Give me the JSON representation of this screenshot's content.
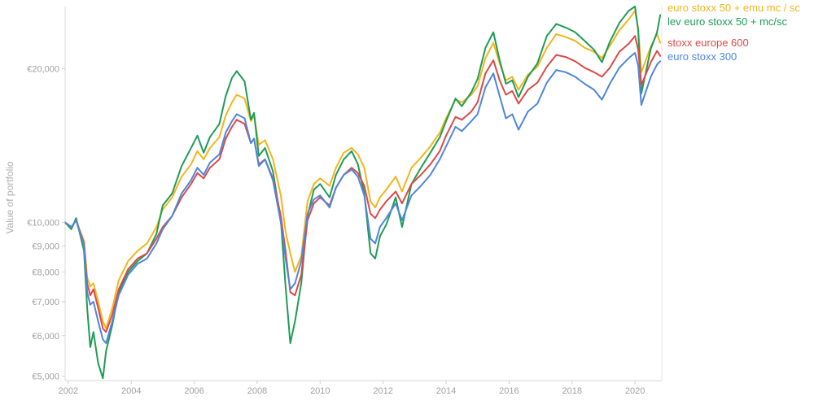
{
  "chart_data": {
    "type": "line",
    "title": "",
    "xlabel": "",
    "ylabel": "Value of portfolio",
    "y_scale": "log",
    "ylim": [
      4900,
      26500
    ],
    "xlim": [
      2001.9,
      2020.85
    ],
    "grid": false,
    "legend_placement": "right, at line ends",
    "y_ticks": [
      {
        "value": 5000,
        "label": "€5,000"
      },
      {
        "value": 6000,
        "label": "€6,000"
      },
      {
        "value": 7000,
        "label": "€7,000"
      },
      {
        "value": 8000,
        "label": "€8,000"
      },
      {
        "value": 9000,
        "label": "€9,000"
      },
      {
        "value": 10000,
        "label": "€10,000"
      },
      {
        "value": 20000,
        "label": "€20,000"
      }
    ],
    "x_ticks": [
      {
        "value": 2002,
        "label": "2002"
      },
      {
        "value": 2004,
        "label": "2004"
      },
      {
        "value": 2006,
        "label": "2006"
      },
      {
        "value": 2008,
        "label": "2008"
      },
      {
        "value": 2010,
        "label": "2010"
      },
      {
        "value": 2012,
        "label": "2012"
      },
      {
        "value": 2014,
        "label": "2014"
      },
      {
        "value": 2016,
        "label": "2016"
      },
      {
        "value": 2018,
        "label": "2018"
      },
      {
        "value": 2020,
        "label": "2020"
      }
    ],
    "series": [
      {
        "name": "euro stoxx 50 + emu mc / sc",
        "color": "#f2b51c",
        "x": [
          2001.9,
          2002.1,
          2002.25,
          2002.5,
          2002.6,
          2002.7,
          2002.8,
          2002.95,
          2003.1,
          2003.2,
          2003.4,
          2003.6,
          2003.9,
          2004.2,
          2004.5,
          2004.8,
          2005.0,
          2005.3,
          2005.6,
          2005.9,
          2006.1,
          2006.3,
          2006.5,
          2006.8,
          2007.0,
          2007.2,
          2007.35,
          2007.6,
          2007.8,
          2007.9,
          2008.05,
          2008.25,
          2008.5,
          2008.75,
          2008.9,
          2009.05,
          2009.2,
          2009.4,
          2009.6,
          2009.8,
          2010.0,
          2010.3,
          2010.5,
          2010.75,
          2011.0,
          2011.2,
          2011.4,
          2011.6,
          2011.75,
          2011.9,
          2012.1,
          2012.4,
          2012.6,
          2012.9,
          2013.2,
          2013.5,
          2013.8,
          2014.0,
          2014.3,
          2014.5,
          2014.8,
          2015.0,
          2015.25,
          2015.5,
          2015.7,
          2015.9,
          2016.1,
          2016.3,
          2016.6,
          2016.9,
          2017.2,
          2017.5,
          2017.8,
          2018.1,
          2018.4,
          2018.7,
          2018.95,
          2019.2,
          2019.5,
          2019.8,
          2020.0,
          2020.1,
          2020.2,
          2020.5,
          2020.7,
          2020.8
        ],
        "values": [
          10000,
          9800,
          10100,
          9200,
          7800,
          7500,
          7600,
          7000,
          6400,
          6200,
          6800,
          7700,
          8400,
          8800,
          9100,
          9800,
          10600,
          11200,
          12300,
          13000,
          13800,
          13300,
          14000,
          14700,
          16200,
          17200,
          17800,
          17500,
          15800,
          16200,
          14200,
          14500,
          13300,
          11300,
          9600,
          8700,
          8000,
          8600,
          11000,
          11900,
          12200,
          11800,
          12800,
          13700,
          14000,
          13600,
          12800,
          11000,
          10700,
          11200,
          11600,
          12300,
          11500,
          12800,
          13400,
          14100,
          15000,
          16000,
          17400,
          17200,
          17800,
          18500,
          21000,
          22500,
          20500,
          19000,
          19300,
          18200,
          19500,
          20200,
          22000,
          23400,
          23100,
          22700,
          22000,
          21600,
          21000,
          22200,
          23800,
          25000,
          26000,
          24000,
          19700,
          22100,
          23400,
          22500
        ]
      },
      {
        "name": "lev euro stoxx 50 + mc/sc",
        "color": "#1f9c55",
        "x": [
          2001.9,
          2002.1,
          2002.25,
          2002.5,
          2002.6,
          2002.7,
          2002.8,
          2002.95,
          2003.1,
          2003.2,
          2003.4,
          2003.6,
          2003.9,
          2004.2,
          2004.5,
          2004.8,
          2005.0,
          2005.3,
          2005.6,
          2005.9,
          2006.1,
          2006.3,
          2006.5,
          2006.8,
          2007.0,
          2007.2,
          2007.35,
          2007.6,
          2007.8,
          2007.9,
          2008.05,
          2008.25,
          2008.5,
          2008.75,
          2008.9,
          2009.05,
          2009.2,
          2009.4,
          2009.6,
          2009.8,
          2010.0,
          2010.3,
          2010.5,
          2010.75,
          2011.0,
          2011.2,
          2011.4,
          2011.6,
          2011.75,
          2011.9,
          2012.1,
          2012.4,
          2012.6,
          2012.9,
          2013.2,
          2013.5,
          2013.8,
          2014.0,
          2014.3,
          2014.5,
          2014.8,
          2015.0,
          2015.25,
          2015.5,
          2015.7,
          2015.9,
          2016.1,
          2016.3,
          2016.6,
          2016.9,
          2017.2,
          2017.5,
          2017.8,
          2018.1,
          2018.4,
          2018.7,
          2018.95,
          2019.2,
          2019.5,
          2019.8,
          2020.0,
          2020.1,
          2020.2,
          2020.5,
          2020.7,
          2020.8
        ],
        "values": [
          10000,
          9700,
          10200,
          8800,
          6800,
          5700,
          6100,
          5300,
          4950,
          5600,
          6300,
          7300,
          8000,
          8400,
          8700,
          9500,
          10800,
          11400,
          12900,
          14000,
          14800,
          13700,
          14700,
          15600,
          17700,
          19200,
          19800,
          18900,
          15900,
          16400,
          13500,
          14000,
          12600,
          10100,
          7500,
          5800,
          6400,
          7600,
          10300,
          11600,
          11900,
          11200,
          12400,
          13300,
          13800,
          13000,
          11400,
          8700,
          8500,
          9400,
          9900,
          11200,
          9800,
          11900,
          12800,
          13700,
          14700,
          15800,
          17500,
          16900,
          18000,
          19100,
          22000,
          23600,
          20800,
          18700,
          19000,
          17600,
          19300,
          20500,
          23200,
          24500,
          24100,
          23600,
          22700,
          21800,
          20600,
          22600,
          24600,
          26000,
          26500,
          23800,
          17900,
          21900,
          23600,
          25500
        ]
      },
      {
        "name": "stoxx europe 600",
        "color": "#dc4a48",
        "x": [
          2001.9,
          2002.1,
          2002.25,
          2002.5,
          2002.6,
          2002.7,
          2002.8,
          2002.95,
          2003.1,
          2003.2,
          2003.4,
          2003.6,
          2003.9,
          2004.2,
          2004.5,
          2004.8,
          2005.0,
          2005.3,
          2005.6,
          2005.9,
          2006.1,
          2006.3,
          2006.5,
          2006.8,
          2007.0,
          2007.2,
          2007.35,
          2007.6,
          2007.8,
          2007.9,
          2008.05,
          2008.25,
          2008.5,
          2008.75,
          2008.9,
          2009.05,
          2009.2,
          2009.4,
          2009.6,
          2009.8,
          2010.0,
          2010.3,
          2010.5,
          2010.75,
          2011.0,
          2011.2,
          2011.4,
          2011.6,
          2011.75,
          2011.9,
          2012.1,
          2012.4,
          2012.6,
          2012.9,
          2013.2,
          2013.5,
          2013.8,
          2014.0,
          2014.3,
          2014.5,
          2014.8,
          2015.0,
          2015.25,
          2015.5,
          2015.7,
          2015.9,
          2016.1,
          2016.3,
          2016.6,
          2016.9,
          2017.2,
          2017.5,
          2017.8,
          2018.1,
          2018.4,
          2018.7,
          2018.95,
          2019.2,
          2019.5,
          2019.8,
          2020.0,
          2020.1,
          2020.2,
          2020.5,
          2020.7,
          2020.8
        ],
        "values": [
          10000,
          9800,
          10100,
          9100,
          7600,
          7200,
          7400,
          6800,
          6200,
          6100,
          6600,
          7400,
          8100,
          8500,
          8700,
          9300,
          9800,
          10300,
          11200,
          11900,
          12500,
          12200,
          12800,
          13300,
          14600,
          15400,
          15900,
          15600,
          14300,
          14600,
          13000,
          13300,
          12200,
          10300,
          8800,
          7300,
          7200,
          7900,
          10100,
          10900,
          11200,
          10800,
          11700,
          12400,
          12800,
          12500,
          11800,
          10400,
          10200,
          10600,
          11000,
          11500,
          10900,
          11900,
          12400,
          13000,
          13800,
          14800,
          16100,
          15900,
          16500,
          17200,
          19600,
          20800,
          19000,
          17800,
          18100,
          17100,
          18200,
          18800,
          20200,
          21300,
          21100,
          20700,
          20100,
          19700,
          19300,
          20100,
          21600,
          22400,
          23200,
          21800,
          18600,
          20600,
          21700,
          21200
        ]
      },
      {
        "name": "euro stoxx 300",
        "color": "#4e86dc",
        "x": [
          2001.9,
          2002.1,
          2002.25,
          2002.5,
          2002.6,
          2002.7,
          2002.8,
          2002.95,
          2003.1,
          2003.2,
          2003.4,
          2003.6,
          2003.9,
          2004.2,
          2004.5,
          2004.8,
          2005.0,
          2005.3,
          2005.6,
          2005.9,
          2006.1,
          2006.3,
          2006.5,
          2006.8,
          2007.0,
          2007.2,
          2007.35,
          2007.6,
          2007.8,
          2007.9,
          2008.05,
          2008.25,
          2008.5,
          2008.75,
          2008.9,
          2009.05,
          2009.2,
          2009.4,
          2009.6,
          2009.8,
          2010.0,
          2010.3,
          2010.5,
          2010.75,
          2011.0,
          2011.2,
          2011.4,
          2011.6,
          2011.75,
          2011.9,
          2012.1,
          2012.4,
          2012.6,
          2012.9,
          2013.2,
          2013.5,
          2013.8,
          2014.0,
          2014.3,
          2014.5,
          2014.8,
          2015.0,
          2015.25,
          2015.5,
          2015.7,
          2015.9,
          2016.1,
          2016.3,
          2016.6,
          2016.9,
          2017.2,
          2017.5,
          2017.8,
          2018.1,
          2018.4,
          2018.7,
          2018.95,
          2019.2,
          2019.5,
          2019.8,
          2020.0,
          2020.1,
          2020.2,
          2020.5,
          2020.7,
          2020.8
        ],
        "values": [
          10000,
          9800,
          10100,
          9000,
          7300,
          6900,
          7000,
          6400,
          5900,
          5800,
          6400,
          7200,
          7900,
          8300,
          8500,
          9100,
          9700,
          10300,
          11400,
          12100,
          12800,
          12400,
          13100,
          13600,
          15000,
          15800,
          16300,
          16000,
          14300,
          14600,
          12900,
          13300,
          12100,
          10000,
          8500,
          7400,
          7600,
          8400,
          10400,
          11100,
          11300,
          10700,
          11700,
          12400,
          12700,
          12300,
          11300,
          9300,
          9100,
          9800,
          10200,
          10900,
          10100,
          11300,
          11800,
          12400,
          13300,
          14100,
          15400,
          15100,
          15800,
          16300,
          18400,
          19600,
          17700,
          16000,
          16300,
          15200,
          16500,
          17100,
          18800,
          19900,
          19700,
          19300,
          18700,
          18200,
          17400,
          18700,
          20100,
          21000,
          21500,
          20300,
          17000,
          19300,
          20400,
          20700
        ]
      }
    ]
  }
}
